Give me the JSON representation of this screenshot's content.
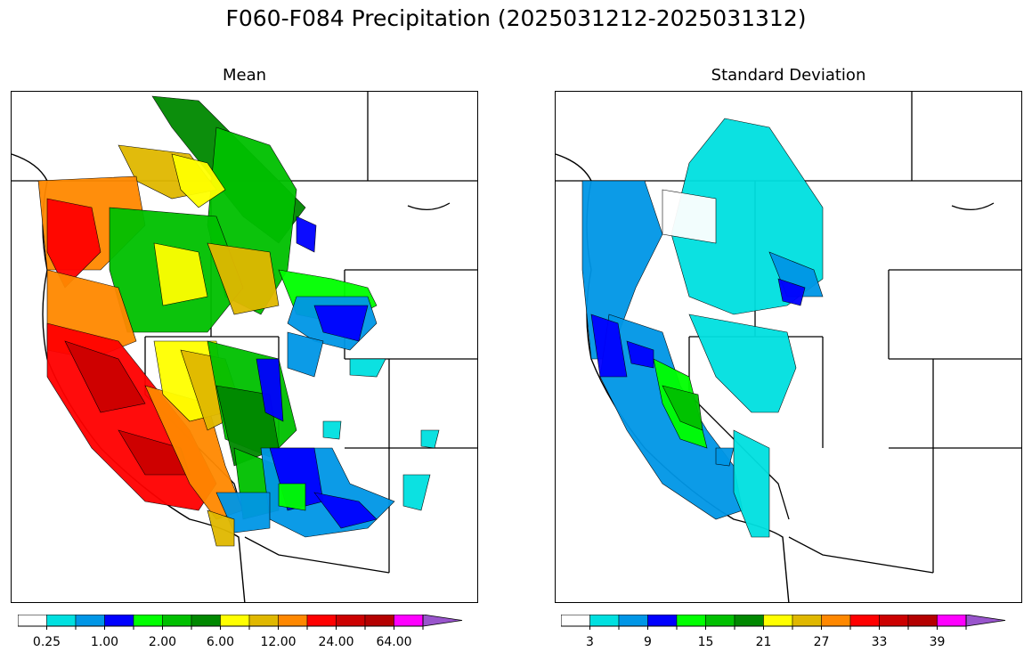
{
  "figure": {
    "title": "F060-F084 Precipitation (2025031212-2025031312)"
  },
  "colors": {
    "levels": [
      "#ffffff",
      "#00e0e0",
      "#0096e6",
      "#0000ff",
      "#00ff00",
      "#00c000",
      "#008800",
      "#ffff00",
      "#e0b800",
      "#ff8800",
      "#ff0000",
      "#cc0000",
      "#b40000",
      "#ff00ff",
      "#9955cc"
    ]
  },
  "chart_data": [
    {
      "type": "heatmap",
      "title": "Mean",
      "colorbar": {
        "tick_labels": [
          "0.25",
          "1.00",
          "2.00",
          "6.00",
          "12.00",
          "24.00",
          "64.00"
        ],
        "extend": "max"
      }
    },
    {
      "type": "heatmap",
      "title": "Standard Deviation",
      "colorbar": {
        "tick_labels": [
          "3",
          "9",
          "15",
          "21",
          "27",
          "33",
          "39"
        ],
        "extend": "max"
      }
    }
  ]
}
